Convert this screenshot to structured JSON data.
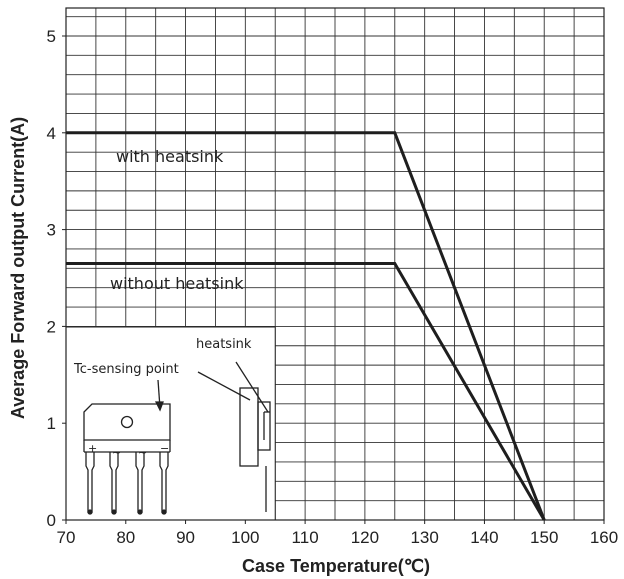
{
  "chart_data": {
    "type": "line",
    "xlabel": "Case Temperature(℃)",
    "ylabel": "Average Forward output Current(A)",
    "xlim": [
      70,
      160
    ],
    "ylim": [
      0,
      5.2
    ],
    "x_ticks": [
      "70",
      "80",
      "90",
      "100",
      "110",
      "120",
      "130",
      "140",
      "150",
      "160"
    ],
    "y_ticks": [
      "0",
      "1",
      "2",
      "3",
      "4",
      "5"
    ],
    "grid": true,
    "series": [
      {
        "name": "with heatsink",
        "x": [
          70,
          125,
          150
        ],
        "y": [
          4.0,
          4.0,
          0
        ]
      },
      {
        "name": "without heatsink",
        "x": [
          70,
          125,
          150
        ],
        "y": [
          2.65,
          2.65,
          0
        ]
      }
    ],
    "annotations": {
      "heatsink": "heatsink",
      "tc_sensing_point": "Tc-sensing point",
      "pin_plus": "+",
      "pin_ac1": "~",
      "pin_ac2": "~",
      "pin_minus": "−"
    }
  }
}
